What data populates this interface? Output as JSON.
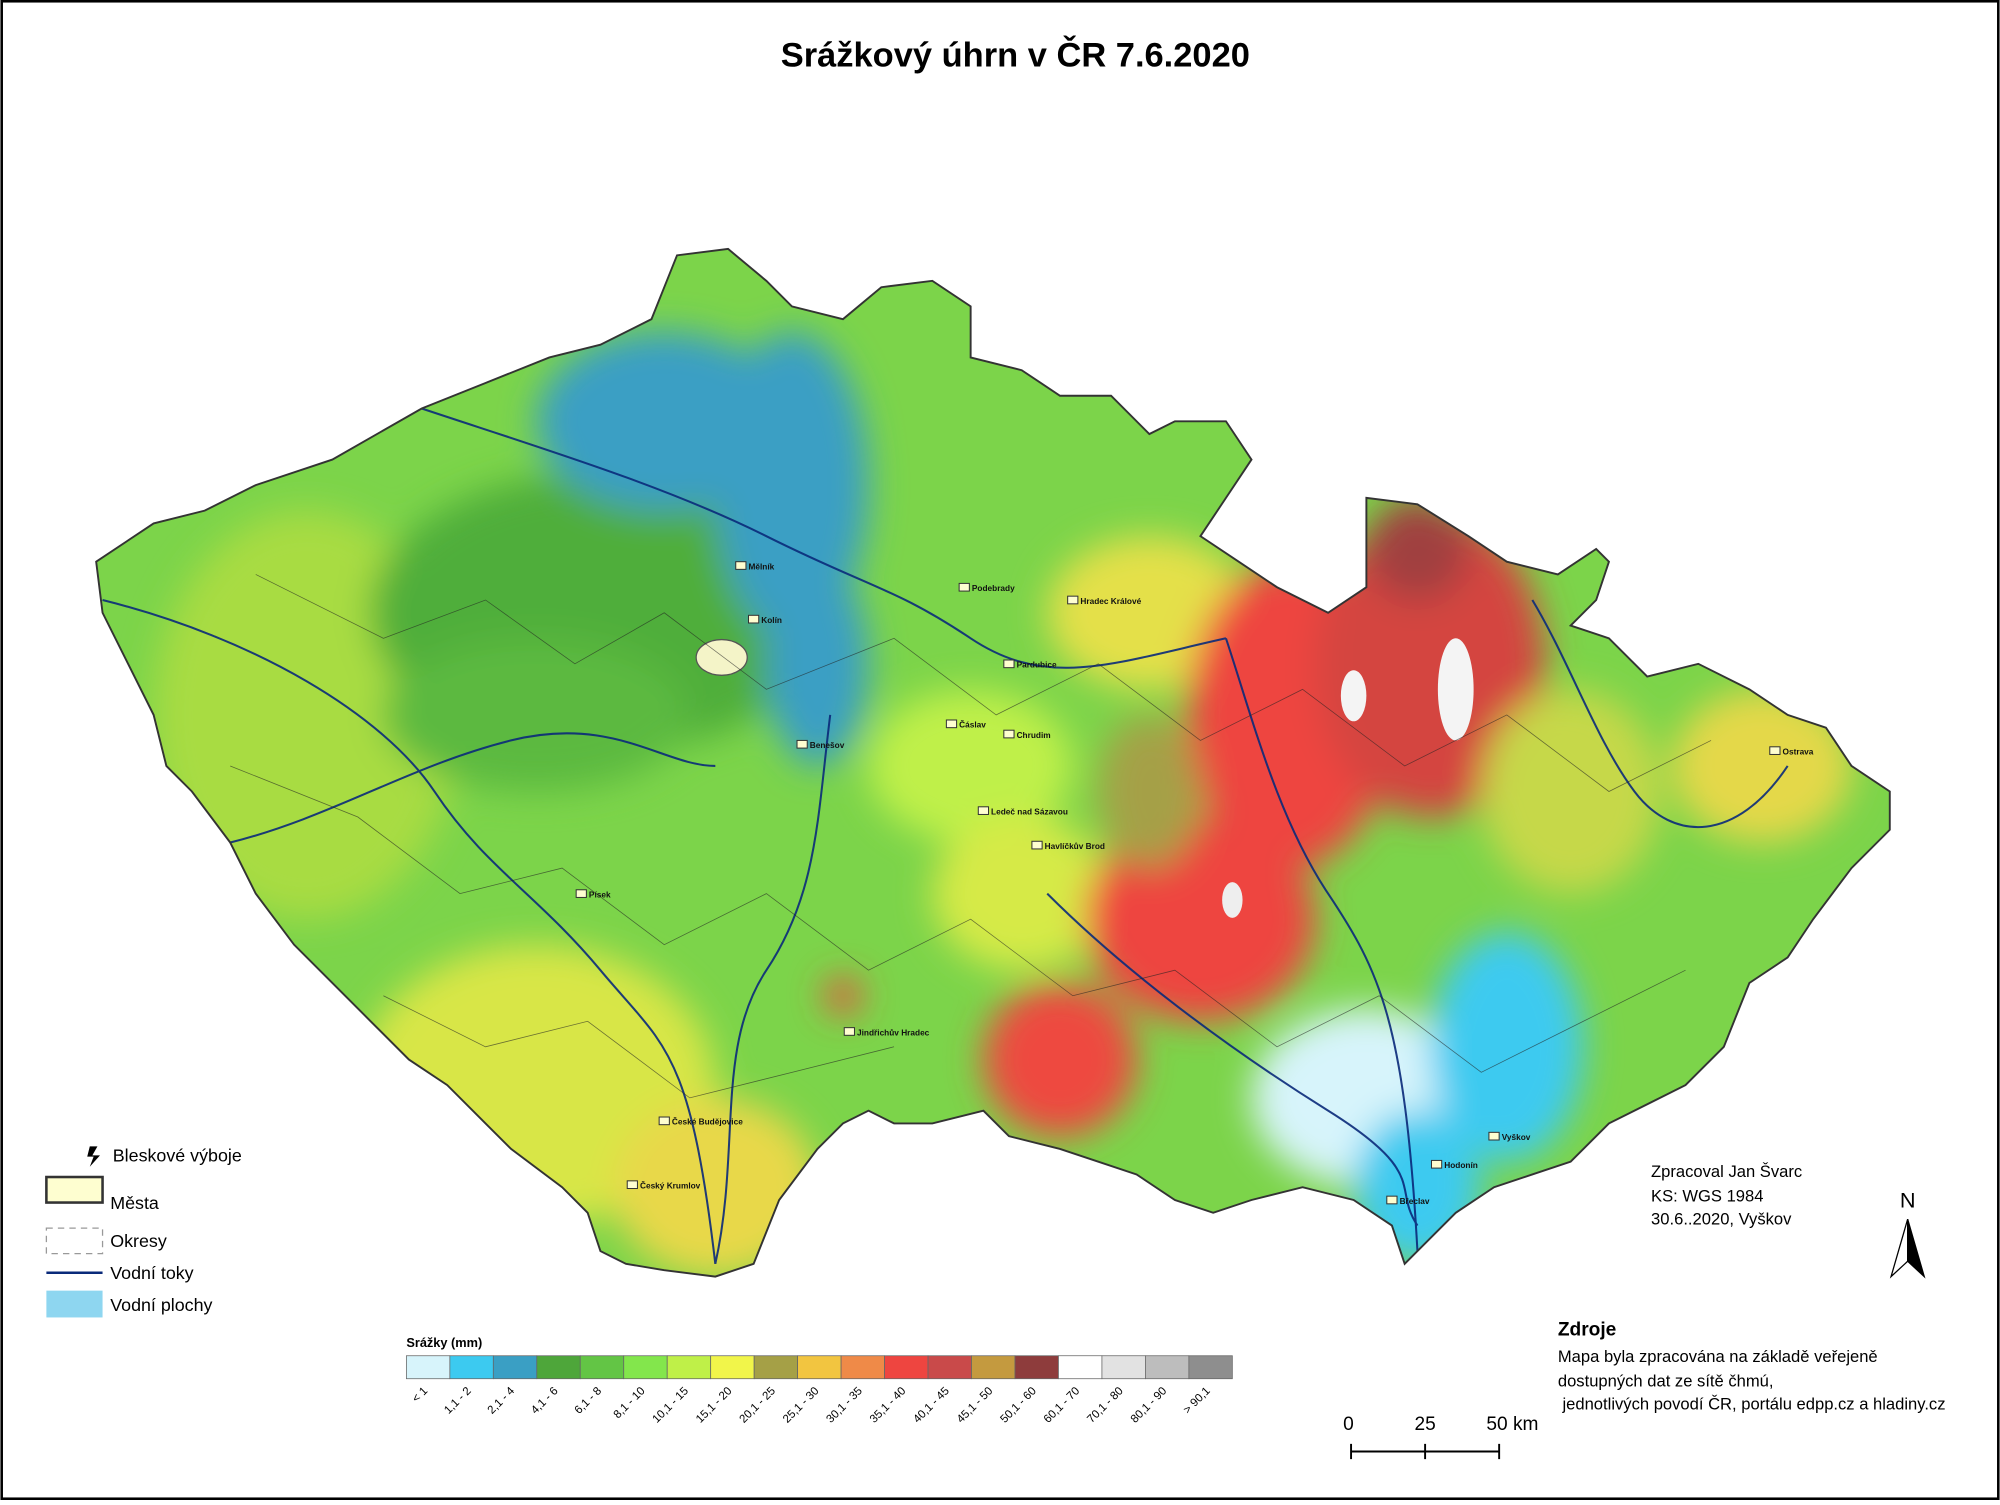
{
  "title": "Srážkový úhrn v ČR 7.6.2020",
  "map_legend": [
    {
      "label": "Bleskové výboje"
    },
    {
      "label": "Města"
    },
    {
      "label": "Okresy"
    },
    {
      "label": "Vodní toky"
    },
    {
      "label": "Vodní plochy"
    }
  ],
  "color_scale": {
    "title": "Srážky (mm)",
    "classes": [
      {
        "label": "< 1",
        "color": "#d7f4fb"
      },
      {
        "label": "1,1 - 2",
        "color": "#3ccaf0"
      },
      {
        "label": "2,1 - 4",
        "color": "#3a9fc4"
      },
      {
        "label": "4,1 - 6",
        "color": "#4ea63a"
      },
      {
        "label": "6,1 - 8",
        "color": "#63c545"
      },
      {
        "label": "8,1 - 10",
        "color": "#83e64c"
      },
      {
        "label": "10,1 - 15",
        "color": "#bff048"
      },
      {
        "label": "15,1 - 20",
        "color": "#f1f54a"
      },
      {
        "label": "20,1 - 25",
        "color": "#a5a046"
      },
      {
        "label": "25,1 - 30",
        "color": "#f2c540"
      },
      {
        "label": "30,1 - 35",
        "color": "#ef8a48"
      },
      {
        "label": "35,1 - 40",
        "color": "#ee4540"
      },
      {
        "label": "40,1 - 45",
        "color": "#c94a4a"
      },
      {
        "label": "45,1 - 50",
        "color": "#c49a3f"
      },
      {
        "label": "50,1 - 60",
        "color": "#8e3c3c"
      },
      {
        "label": "60,1 - 70",
        "color": "#ffffff"
      },
      {
        "label": "70,1 - 80",
        "color": "#e2e2e2"
      },
      {
        "label": "80,1 - 90",
        "color": "#bdbdbd"
      },
      {
        "label": "> 90,1",
        "color": "#8e8e8e"
      }
    ]
  },
  "credits": [
    "Zpracoval Jan Švarc",
    "KS: WGS 1984",
    "30.6..2020, Vyškov"
  ],
  "north": "N",
  "sources": {
    "title": "Zdroje",
    "lines": [
      "Mapa byla zpracována na základě veřejeně",
      "dostupných dat ze sítě čhmú,",
      " jednotlivých povodí ČR, portálu edpp.cz a hladiny.cz"
    ]
  },
  "scale_bar": {
    "labels": [
      "0",
      "25",
      "50 km"
    ]
  },
  "cities": [
    "Kolín",
    "Čáslav",
    "Pardubice",
    "Hradec Králové",
    "Chrudim",
    "Havlíčkův Brod",
    "Ledeč nad Sázavou",
    "Jindřichův Hradec",
    "České Budějovice",
    "Český Krumlov",
    "Vyškov",
    "Hodonín",
    "Břeclav",
    "Ostrava",
    "Písek",
    "Benešov",
    "Podebrady",
    "Mělník"
  ]
}
